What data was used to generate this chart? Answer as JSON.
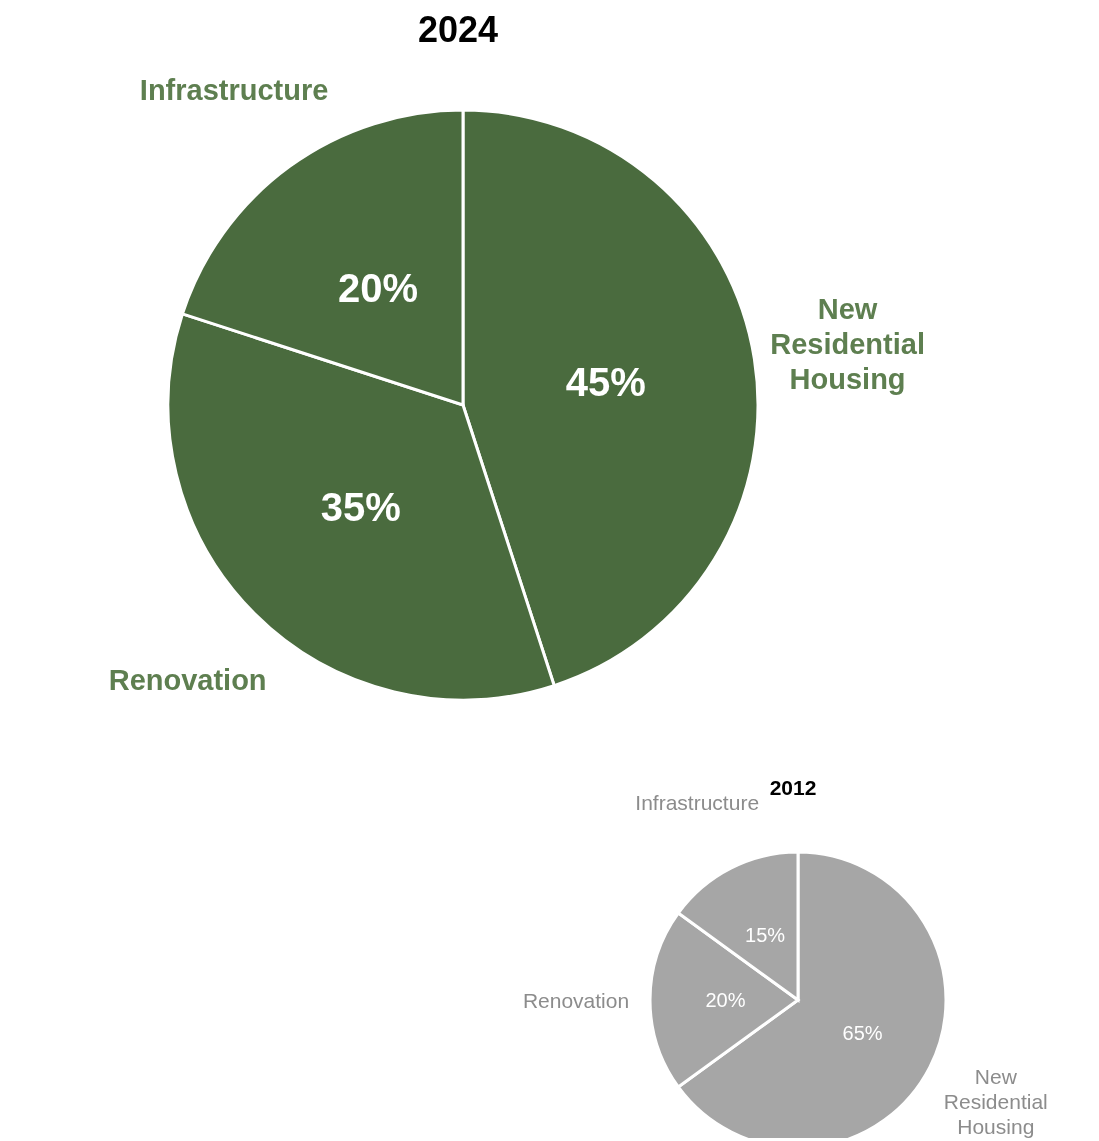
{
  "chart_data": [
    {
      "type": "pie",
      "title": "2024",
      "categories": [
        "New Residential Housing",
        "Renovation",
        "Infrastructure"
      ],
      "values": [
        45,
        35,
        20
      ],
      "value_labels": [
        "45%",
        "35%",
        "20%"
      ],
      "colors": [
        "#4a6b3e",
        "#4a6b3e",
        "#4a6b3e"
      ]
    },
    {
      "type": "pie",
      "title": "2012",
      "categories": [
        "New Residential Housing",
        "Renovation",
        "Infrastructure"
      ],
      "values": [
        65,
        20,
        15
      ],
      "value_labels": [
        "65%",
        "20%",
        "15%"
      ],
      "colors": [
        "#a6a6a6",
        "#a6a6a6",
        "#a6a6a6"
      ]
    }
  ]
}
